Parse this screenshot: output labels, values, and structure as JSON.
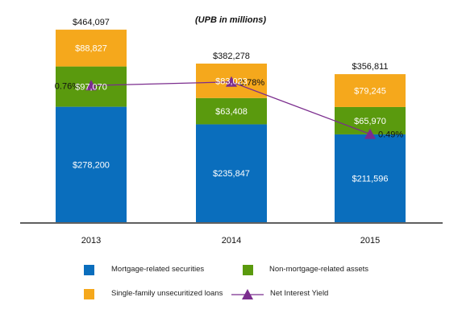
{
  "chart_data": {
    "type": "bar",
    "stacked": true,
    "title": "(UPB in millions)",
    "categories": [
      "2013",
      "2014",
      "2015"
    ],
    "totals": [
      464097,
      382278,
      356811
    ],
    "total_labels": [
      "$464,097",
      "$382,278",
      "$356,811"
    ],
    "ylim": [
      0,
      520000
    ],
    "series": [
      {
        "name": "Mortgage-related securities",
        "color": "#0a6ebd",
        "values": [
          278200,
          235847,
          211596
        ],
        "labels": [
          "$278,200",
          "$235,847",
          "$211,596"
        ]
      },
      {
        "name": "Non-mortgage-related assets",
        "color": "#5a9a0e",
        "values": [
          97070,
          63408,
          65970
        ],
        "labels": [
          "$97,070",
          "$63,408",
          "$65,970"
        ]
      },
      {
        "name": "Single-family unsecuritized loans",
        "color": "#f5a81c",
        "values": [
          88827,
          83023,
          79245
        ],
        "labels": [
          "$88,827",
          "$83,023",
          "$79,245"
        ]
      }
    ],
    "line_series": {
      "name": "Net Interest Yield",
      "color": "#7b2d8e",
      "marker": "triangle",
      "values": [
        0.76,
        0.78,
        0.49
      ],
      "labels": [
        "0.76%",
        "0.78%",
        "0.49%"
      ],
      "ylim": [
        0,
        1.2
      ]
    },
    "legend_position": "bottom",
    "grid": false
  }
}
